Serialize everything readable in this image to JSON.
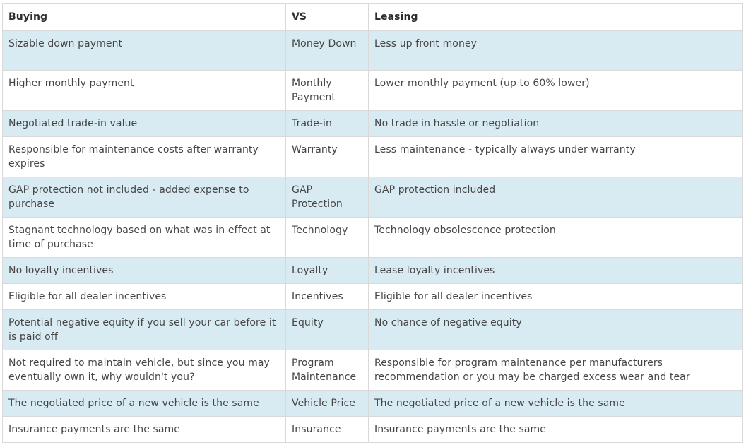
{
  "headers": {
    "buying": "Buying",
    "vs": "VS",
    "leasing": "Leasing"
  },
  "rows": [
    {
      "buying": "Sizable down payment",
      "vs": "Money Down",
      "leasing": "Less up front money"
    },
    {
      "buying": "Higher monthly payment",
      "vs": "Monthly Payment",
      "leasing": "Lower monthly payment (up to 60% lower)"
    },
    {
      "buying": "Negotiated trade-in value",
      "vs": "Trade-in",
      "leasing": "No trade in hassle or negotiation"
    },
    {
      "buying": "Responsible for maintenance costs after warranty expires",
      "vs": "Warranty",
      "leasing": "Less maintenance - typically always under warranty"
    },
    {
      "buying": "GAP protection not included - added expense to purchase",
      "vs": "GAP Protection",
      "leasing": "GAP protection included"
    },
    {
      "buying": "Stagnant technology based on what was in effect at time of purchase",
      "vs": "Technology",
      "leasing": "Technology obsolescence protection"
    },
    {
      "buying": "No loyalty incentives",
      "vs": "Loyalty",
      "leasing": "Lease loyalty incentives"
    },
    {
      "buying": "Eligible for all dealer incentives",
      "vs": "Incentives",
      "leasing": "Eligible for all dealer incentives"
    },
    {
      "buying": "Potential negative equity if you sell your car before it is paid off",
      "vs": "Equity",
      "leasing": "No chance of negative equity"
    },
    {
      "buying": "Not required to maintain vehicle, but since you may eventually own it, why wouldn't you?",
      "vs": "Program Maintenance",
      "leasing": "Responsible for program maintenance per manufacturers recommendation or you may be charged excess wear and tear"
    },
    {
      "buying": "The negotiated price of a new vehicle is the same",
      "vs": "Vehicle Price",
      "leasing": "The negotiated price of a new vehicle is the same"
    },
    {
      "buying": "Insurance payments are the same",
      "vs": "Insurance",
      "leasing": "Insurance payments are the same"
    }
  ]
}
